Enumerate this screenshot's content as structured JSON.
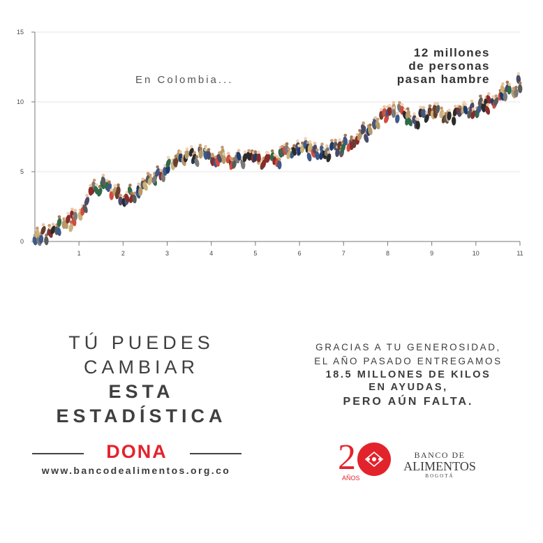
{
  "chart_data": {
    "type": "line",
    "title": "",
    "xlabel": "",
    "ylabel": "",
    "x_ticks": [
      1,
      2,
      3,
      4,
      5,
      6,
      7,
      8,
      9,
      10,
      11
    ],
    "y_ticks": [
      0,
      5,
      10,
      15
    ],
    "xlim": [
      0,
      11
    ],
    "ylim": [
      0,
      15
    ],
    "grid": true,
    "series": [
      {
        "values_x": [
          0,
          0.5,
          1,
          1.3,
          1.6,
          2,
          2.3,
          2.6,
          3,
          3.5,
          4,
          4.5,
          5,
          5.5,
          6,
          6.5,
          7,
          7.5,
          7.8,
          8.2,
          8.6,
          9,
          9.5,
          10,
          10.5,
          11
        ],
        "values_y": [
          0.3,
          1.0,
          2.0,
          3.6,
          4.2,
          3.2,
          3.6,
          4.6,
          5.4,
          6.3,
          6.2,
          6.0,
          5.8,
          6.1,
          6.8,
          6.4,
          7.0,
          7.9,
          9.0,
          9.4,
          8.9,
          9.3,
          9.1,
          9.6,
          10.4,
          11.5
        ]
      }
    ]
  },
  "annotations": {
    "right": [
      "12 millones",
      "de personas",
      "pasan hambre"
    ],
    "left": "En Colombia..."
  },
  "message_left": {
    "line1": "TÚ PUEDES",
    "line2": "CAMBIAR",
    "line3": "ESTA",
    "line4": "ESTADÍSTICA"
  },
  "dona": "DONA",
  "url": "www.bancodealimentos.org.co",
  "message_right": {
    "line1": "GRACIAS A TU GENEROSIDAD,",
    "line2": "EL AÑO PASADO ENTREGAMOS",
    "line3": "18.5 MILLONES DE KILOS",
    "line4": "EN AYUDAS,",
    "line5": "PERO AÚN FALTA."
  },
  "logo": {
    "line1": "BANCO DE",
    "line2": "ALIMENTOS",
    "line3": "BOGOTÁ",
    "years_text": "AÑOS"
  },
  "colors": {
    "accent": "#e3232c",
    "text": "#3b3b3b",
    "grid": "#e6e6e6"
  }
}
